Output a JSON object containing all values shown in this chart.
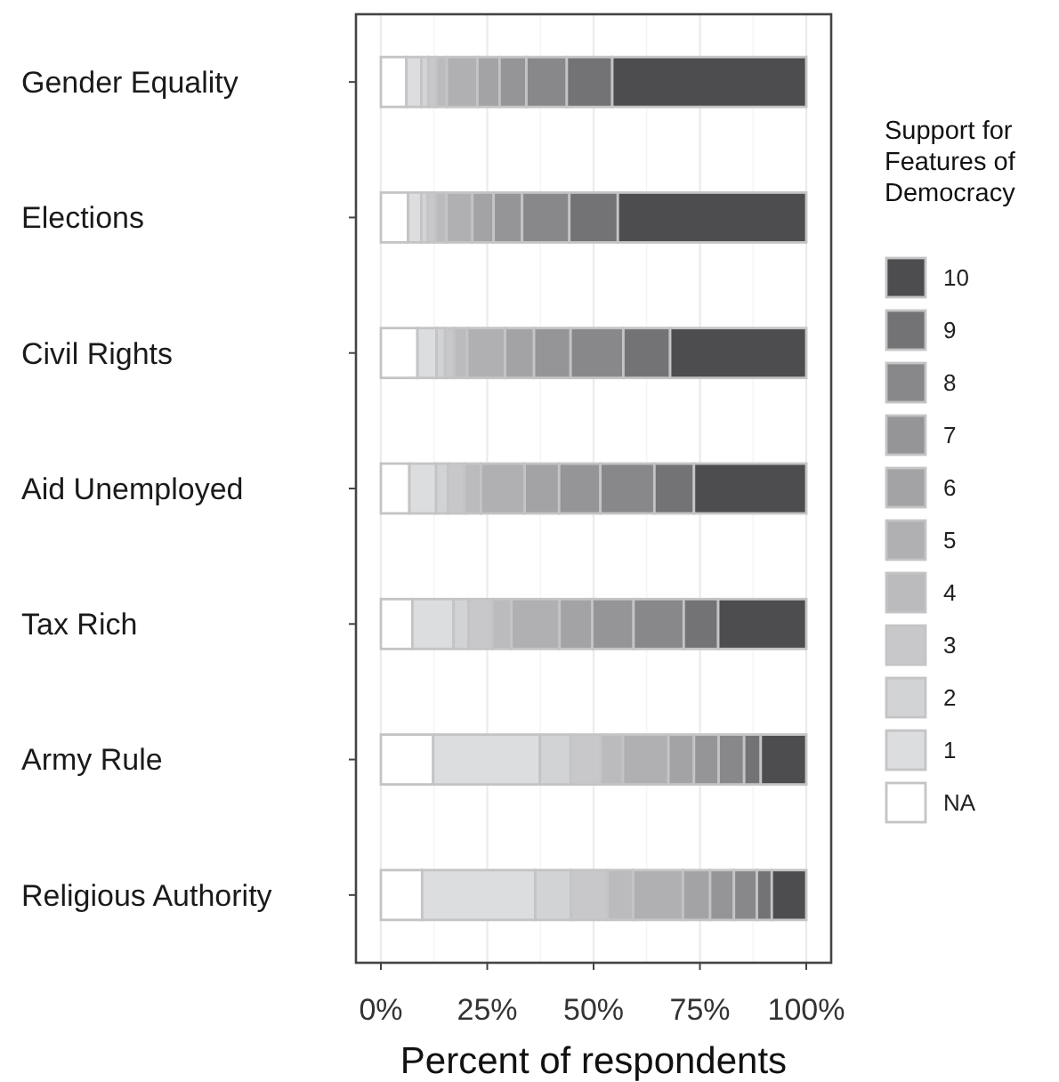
{
  "chart_data": {
    "type": "bar",
    "orientation": "horizontal",
    "stacked": true,
    "xlabel": "Percent of respondents",
    "legend_title": "Support for Features of Democracy",
    "legend": "right",
    "grid": "x",
    "categories": [
      "Gender Equality",
      "Elections",
      "Civil Rights",
      "Aid Unemployed",
      "Tax Rich",
      "Army Rule",
      "Religious Authority"
    ],
    "xlim": [
      0,
      100
    ],
    "xticks": [
      {
        "value": 0,
        "label": "0%"
      },
      {
        "value": 25,
        "label": "25%"
      },
      {
        "value": 50,
        "label": "50%"
      },
      {
        "value": 75,
        "label": "75%"
      },
      {
        "value": 100,
        "label": "100%"
      }
    ],
    "series": [
      {
        "name": "NA",
        "color": "#ffffff",
        "values": [
          6.0,
          6.4,
          8.6,
          6.7,
          7.4,
          12.3,
          9.7
        ]
      },
      {
        "name": "1",
        "color": "#dcdddf",
        "values": [
          3.5,
          3.1,
          4.5,
          6.3,
          9.7,
          25.1,
          26.6
        ]
      },
      {
        "name": "2",
        "color": "#d2d3d5",
        "values": [
          1.7,
          1.5,
          2.0,
          2.8,
          3.5,
          7.2,
          8.4
        ]
      },
      {
        "name": "3",
        "color": "#c8c8ca",
        "values": [
          1.8,
          1.8,
          2.1,
          3.8,
          5.6,
          7.1,
          8.6
        ]
      },
      {
        "name": "4",
        "color": "#bbbbbd",
        "values": [
          2.5,
          2.6,
          3.1,
          3.9,
          4.5,
          5.2,
          6.0
        ]
      },
      {
        "name": "5",
        "color": "#b0b0b2",
        "values": [
          7.2,
          6.1,
          8.9,
          10.3,
          11.3,
          10.7,
          11.7
        ]
      },
      {
        "name": "6",
        "color": "#a3a3a5",
        "values": [
          5.2,
          5.0,
          6.8,
          8.1,
          7.7,
          6.0,
          6.4
        ]
      },
      {
        "name": "7",
        "color": "#959597",
        "values": [
          6.3,
          6.7,
          8.6,
          9.7,
          9.7,
          5.8,
          5.6
        ]
      },
      {
        "name": "8",
        "color": "#88888a",
        "values": [
          9.5,
          11.1,
          12.4,
          12.7,
          11.8,
          6.0,
          5.4
        ]
      },
      {
        "name": "9",
        "color": "#737375",
        "values": [
          10.7,
          11.4,
          11.0,
          9.3,
          8.1,
          3.9,
          3.5
        ]
      },
      {
        "name": "10",
        "color": "#4d4d4f",
        "values": [
          45.6,
          44.3,
          32.0,
          26.4,
          20.7,
          10.7,
          8.1
        ]
      }
    ]
  }
}
